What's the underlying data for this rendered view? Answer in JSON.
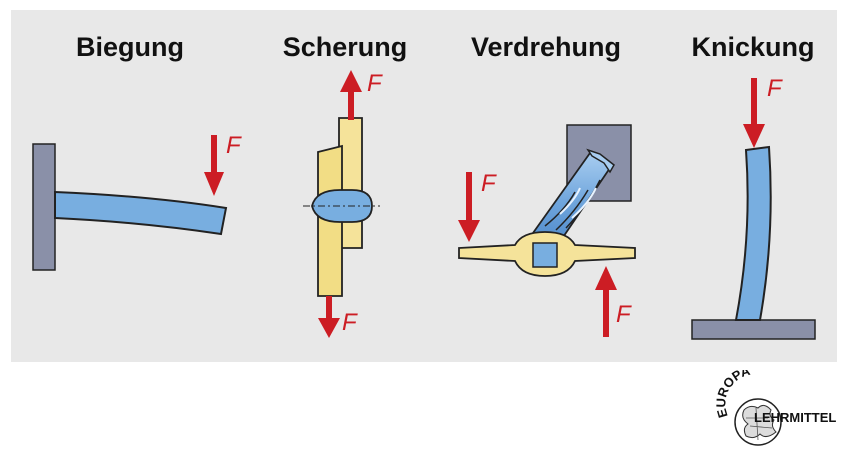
{
  "panels": [
    {
      "title": "Biegung",
      "force_labels": [
        "F"
      ]
    },
    {
      "title": "Scherung",
      "force_labels": [
        "F",
        "F"
      ]
    },
    {
      "title": "Verdrehung",
      "force_labels": [
        "F",
        "F"
      ]
    },
    {
      "title": "Knickung",
      "force_labels": [
        "F"
      ]
    }
  ],
  "logo": {
    "top_text": "EUROPA",
    "bottom_text": "LEHRMITTEL"
  },
  "colors": {
    "background_panel": "#e8e8e8",
    "force_arrow": "#cc1d24",
    "beam": "#78aee0",
    "support": "#8a90a8",
    "wrench": "#f5e39a"
  }
}
